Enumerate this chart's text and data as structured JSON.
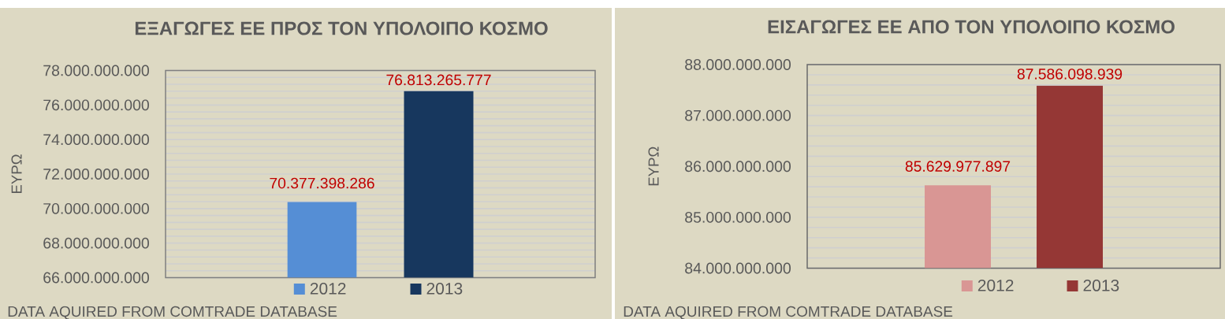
{
  "chart_data": [
    {
      "type": "bar",
      "title": "ΕΞΑΓΩΓΕΣ ΕΕ ΠΡΟΣ ΤΟΝ ΥΠΟΛΟΙΠΟ ΚΟΣΜΟ",
      "ylabel": "ΕΥΡΩ",
      "categories": [
        null
      ],
      "series": [
        {
          "name": "2012",
          "color": "#558ed5",
          "values": [
            70377398286
          ],
          "value_labels": [
            "70.377.398.286"
          ]
        },
        {
          "name": "2013",
          "color": "#17375e",
          "values": [
            76813265777
          ],
          "value_labels": [
            "76.813.265.777"
          ]
        }
      ],
      "ylim": [
        66000000000,
        78000000000
      ],
      "yticks": [
        {
          "value": 66000000000,
          "label": "66.000.000.000"
        },
        {
          "value": 68000000000,
          "label": "68.000.000.000"
        },
        {
          "value": 70000000000,
          "label": "70.000.000.000"
        },
        {
          "value": 72000000000,
          "label": "72.000.000.000"
        },
        {
          "value": 74000000000,
          "label": "74.000.000.000"
        },
        {
          "value": 76000000000,
          "label": "76.000.000.000"
        },
        {
          "value": 78000000000,
          "label": "78.000.000.000"
        }
      ],
      "grid": "y",
      "legend": "bottom",
      "tick_labels": "y",
      "annotations": [
        "DATA AQUIRED FROM COMTRADE DATABASE"
      ]
    },
    {
      "type": "bar",
      "title": "ΕΙΣΑΓΩΓΕΣ ΕΕ ΑΠΟ ΤΟΝ ΥΠΟΛΟΙΠΟ ΚΟΣΜΟ",
      "ylabel": "ΕΥΡΩ",
      "categories": [
        null
      ],
      "series": [
        {
          "name": "2012",
          "color": "#d99694",
          "values": [
            85629977897
          ],
          "value_labels": [
            "85.629.977.897"
          ]
        },
        {
          "name": "2013",
          "color": "#953735",
          "values": [
            87586098939
          ],
          "value_labels": [
            "87.586.098.939"
          ]
        }
      ],
      "ylim": [
        84000000000,
        88000000000
      ],
      "yticks": [
        {
          "value": 84000000000,
          "label": "84.000.000.000"
        },
        {
          "value": 85000000000,
          "label": "85.000.000.000"
        },
        {
          "value": 86000000000,
          "label": "86.000.000.000"
        },
        {
          "value": 87000000000,
          "label": "87.000.000.000"
        },
        {
          "value": 88000000000,
          "label": "88.000.000.000"
        }
      ],
      "grid": "y",
      "legend": "bottom",
      "tick_labels": "y",
      "annotations": [
        "DATA AQUIRED FROM COMTRADE DATABASE"
      ]
    }
  ]
}
